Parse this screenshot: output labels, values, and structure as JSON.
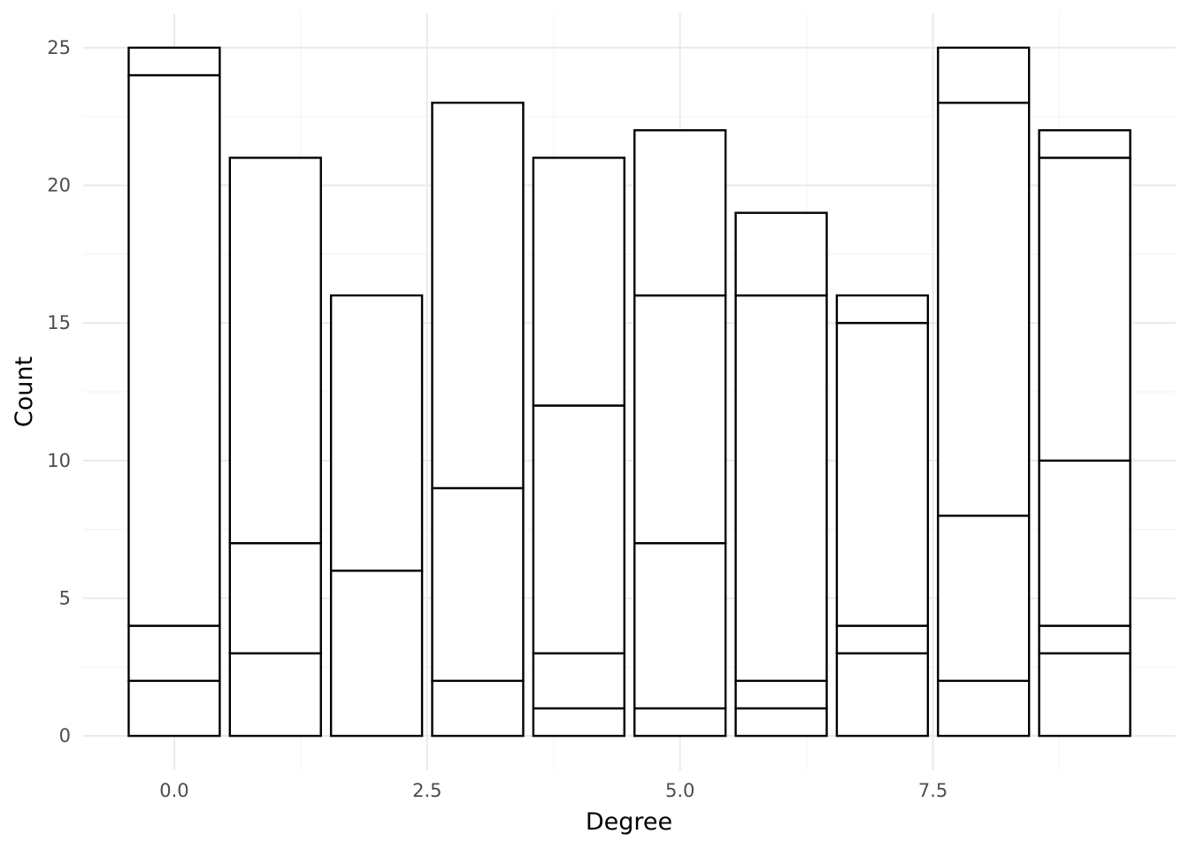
{
  "chart_data": {
    "type": "bar",
    "stacked": true,
    "xlabel": "Degree",
    "ylabel": "Count",
    "x_ticks": [
      "0.0",
      "2.5",
      "5.0",
      "7.5"
    ],
    "y_ticks": [
      "0",
      "5",
      "10",
      "15",
      "20",
      "25"
    ],
    "xlim": [
      -0.9,
      9.9
    ],
    "ylim": [
      -1.25,
      26.25
    ],
    "grid": true,
    "colors": {
      "bar_fill": "#ffffff",
      "bar_outline": "#000000",
      "grid_major": "#ebebeb",
      "grid_minor": "#f4f4f4"
    },
    "bars": [
      {
        "x": 0,
        "cumulative": [
          2,
          4,
          24,
          25
        ]
      },
      {
        "x": 1,
        "cumulative": [
          3,
          7,
          21
        ]
      },
      {
        "x": 2,
        "cumulative": [
          6,
          16
        ]
      },
      {
        "x": 3,
        "cumulative": [
          2,
          9,
          23
        ]
      },
      {
        "x": 4,
        "cumulative": [
          1,
          3,
          12,
          21
        ]
      },
      {
        "x": 5,
        "cumulative": [
          1,
          7,
          16,
          22
        ]
      },
      {
        "x": 6,
        "cumulative": [
          1,
          2,
          16,
          19
        ]
      },
      {
        "x": 7,
        "cumulative": [
          3,
          4,
          15,
          16
        ]
      },
      {
        "x": 8,
        "cumulative": [
          2,
          8,
          23,
          25
        ]
      },
      {
        "x": 9,
        "cumulative": [
          3,
          4,
          10,
          21,
          22
        ]
      }
    ]
  }
}
